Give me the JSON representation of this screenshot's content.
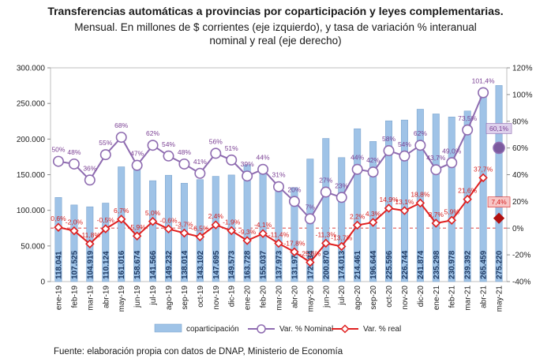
{
  "chart_data": {
    "type": "bar",
    "title": "Transferencias automáticas a provincias por coparticipación y leyes complementarias.",
    "subtitle_lines": [
      "Mensual. En millones de $ corrientes (eje izquierdo), y tasa de variación % interanual",
      "nominal y real (eje derecho)"
    ],
    "source": "Fuente: elaboración propia con datos de DNAP, Ministerio de Economía",
    "categories": [
      "ene-19",
      "feb-19",
      "mar-19",
      "abr-19",
      "may-19",
      "jun-19",
      "jul-19",
      "ago-19",
      "sep-19",
      "oct-19",
      "nov-19",
      "dic-19",
      "ene-20",
      "feb-20",
      "mar-20",
      "abr-20",
      "may-20",
      "jun-20",
      "jul-20",
      "ago-20",
      "sep-20",
      "oct-20",
      "nov-20",
      "dic-20",
      "ene-21",
      "feb-21",
      "mar-21",
      "abr-21",
      "may-21"
    ],
    "left_axis": {
      "ylim": [
        0,
        300000
      ],
      "ticks": [
        "0",
        "50.000",
        "100.000",
        "150.000",
        "200.000",
        "250.000",
        "300.000"
      ]
    },
    "right_axis": {
      "ylim": [
        -40,
        120
      ],
      "ticks": [
        "-40%",
        "-20%",
        "0%",
        "20%",
        "40%",
        "60%",
        "80%",
        "100%",
        "120%"
      ]
    },
    "series": [
      {
        "name": "coparticipación",
        "kind": "bar",
        "color": "#9fc3e7",
        "values": [
          118041,
          107525,
          104919,
          110124,
          161016,
          158674,
          141566,
          149232,
          138014,
          143102,
          147695,
          149573,
          163728,
          155037,
          137973,
          131972,
          172034,
          200870,
          174013,
          214461,
          196644,
          225596,
          226744,
          241874,
          235298,
          230978,
          239392,
          265459,
          275220
        ],
        "labels": [
          "118.041",
          "107.525",
          "104.919",
          "110.124",
          "161.016",
          "158.674",
          "141.566",
          "149.232",
          "138.014",
          "143.102",
          "147.695",
          "149.573",
          "163.728",
          "155.037",
          "137.973",
          "131.972",
          "172.034",
          "200.870",
          "174.013",
          "214.461",
          "196.644",
          "225.596",
          "226.744",
          "241.874",
          "235.298",
          "230.978",
          "239.392",
          "265.459",
          "275.220"
        ]
      },
      {
        "name": "Var. % Nominal",
        "kind": "line",
        "color": "#8e6bb0",
        "values": [
          50,
          48,
          36,
          55,
          68,
          47,
          62,
          54,
          48,
          41,
          56,
          51,
          39,
          44,
          31,
          20,
          7,
          27,
          23,
          44,
          42,
          58,
          54,
          62,
          43.7,
          49,
          73.5,
          101.4,
          60.1
        ],
        "labels": [
          "50%",
          "48%",
          "36%",
          "55%",
          "68%",
          "47%",
          "62%",
          "54%",
          "48%",
          "41%",
          "56%",
          "51%",
          "39%",
          "44%",
          "31%",
          "20%",
          "7%",
          "27%",
          "23%",
          "44%",
          "42%",
          "58%",
          "54%",
          "62%",
          "43,7%",
          "49,0%",
          "73,5%",
          "101,4%",
          "60,1%"
        ]
      },
      {
        "name": "Var. % real",
        "kind": "line",
        "color": "#e02020",
        "values": [
          0.6,
          -2,
          -11.8,
          -0.5,
          6.7,
          -5.9,
          5,
          -0.6,
          -3.7,
          -6.5,
          2.4,
          -1.9,
          -9.3,
          -4.1,
          -11.4,
          -17.8,
          -25.6,
          -11.3,
          -13.7,
          2.2,
          4.3,
          14.9,
          13.1,
          18.8,
          3.7,
          5.9,
          21.6,
          37.7,
          7.4
        ],
        "labels": [
          "0,6%",
          "-2,0%",
          "-11,8%",
          "-0,5%",
          "6,7%",
          "-5,9%",
          "5,0%",
          "-0,6%",
          "-3,7%",
          "-6,5%",
          "2,4%",
          "-1,9%",
          "-9,3%",
          "-4,1%",
          "-11,4%",
          "-17,8%",
          "-25,6%",
          "-11,3%",
          "-13,7%",
          "2,2%",
          "4,3%",
          "14,9%",
          "13,1%",
          "18,8%",
          "3,7%",
          "5,9%",
          "21,6%",
          "37,7%",
          "7,4%"
        ]
      }
    ],
    "grid": false,
    "legend": "bottom"
  }
}
